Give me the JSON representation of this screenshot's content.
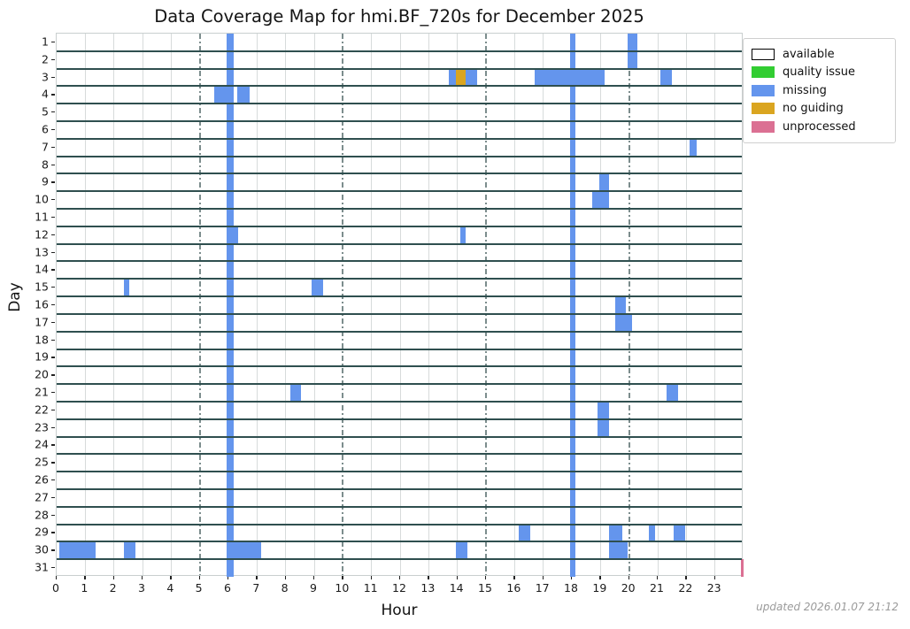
{
  "footer": {
    "updated": "updated 2026.01.07 21:12"
  },
  "legend": {
    "items": [
      {
        "label": "available",
        "color": "#ffffff",
        "border": "#000000"
      },
      {
        "label": "quality issue",
        "color": "#32cd32",
        "border": null
      },
      {
        "label": "missing",
        "color": "#6495ed",
        "border": null
      },
      {
        "label": "no guiding",
        "color": "#daa520",
        "border": null
      },
      {
        "label": "unprocessed",
        "color": "#db7093",
        "border": null
      }
    ]
  },
  "colors": {
    "available": "#ffffff",
    "quality_issue": "#32cd32",
    "missing": "#6495ed",
    "no_guiding": "#daa520",
    "unprocessed": "#db7093",
    "day_separator": "#2f4f4f",
    "grid_minor": "#d7dbdb",
    "grid_major": "#7c8d8d",
    "spine": "#c9cfcf",
    "tick": "#222222",
    "updated_text": "#9a9a9a"
  },
  "chart_data": {
    "type": "heatmap",
    "title": "Data Coverage Map for hmi.BF_720s for December 2025",
    "xlabel": "Hour",
    "ylabel": "Day",
    "x_range": [
      0,
      24
    ],
    "x_tick_labels": [
      "0",
      "1",
      "2",
      "3",
      "4",
      "5",
      "6",
      "7",
      "8",
      "9",
      "10",
      "11",
      "12",
      "13",
      "14",
      "15",
      "16",
      "17",
      "18",
      "19",
      "20",
      "21",
      "22",
      "23"
    ],
    "x_major_gridlines": [
      5,
      10,
      15,
      20
    ],
    "y_day_labels": [
      "1",
      "2",
      "3",
      "4",
      "5",
      "6",
      "7",
      "8",
      "9",
      "10",
      "11",
      "12",
      "13",
      "14",
      "15",
      "16",
      "17",
      "18",
      "19",
      "20",
      "21",
      "22",
      "23",
      "24",
      "25",
      "26",
      "27",
      "28",
      "29",
      "30",
      "31"
    ],
    "statuses": [
      "available",
      "quality issue",
      "missing",
      "no guiding",
      "unprocessed"
    ],
    "default_status": "available",
    "grid": true,
    "legend_position": "upper right outside",
    "full_column_marks": [
      {
        "start": 5.93,
        "end": 6.2,
        "status": "missing"
      },
      {
        "start": 17.93,
        "end": 18.13,
        "status": "missing"
      }
    ],
    "marks": [
      {
        "day": 1,
        "start": 19.95,
        "end": 20.3,
        "status": "missing"
      },
      {
        "day": 2,
        "start": 19.95,
        "end": 20.3,
        "status": "missing"
      },
      {
        "day": 3,
        "start": 13.7,
        "end": 13.95,
        "status": "missing"
      },
      {
        "day": 3,
        "start": 13.95,
        "end": 14.3,
        "status": "no guiding"
      },
      {
        "day": 3,
        "start": 14.3,
        "end": 14.7,
        "status": "missing"
      },
      {
        "day": 3,
        "start": 16.7,
        "end": 19.15,
        "status": "missing"
      },
      {
        "day": 3,
        "start": 21.1,
        "end": 21.5,
        "status": "missing"
      },
      {
        "day": 4,
        "start": 5.5,
        "end": 6.2,
        "status": "missing"
      },
      {
        "day": 4,
        "start": 6.3,
        "end": 6.75,
        "status": "missing"
      },
      {
        "day": 7,
        "start": 22.1,
        "end": 22.35,
        "status": "missing"
      },
      {
        "day": 9,
        "start": 18.95,
        "end": 19.3,
        "status": "missing"
      },
      {
        "day": 10,
        "start": 18.7,
        "end": 19.3,
        "status": "missing"
      },
      {
        "day": 12,
        "start": 5.95,
        "end": 6.35,
        "status": "missing"
      },
      {
        "day": 12,
        "start": 14.1,
        "end": 14.3,
        "status": "missing"
      },
      {
        "day": 15,
        "start": 2.35,
        "end": 2.55,
        "status": "missing"
      },
      {
        "day": 15,
        "start": 8.9,
        "end": 9.3,
        "status": "missing"
      },
      {
        "day": 16,
        "start": 19.5,
        "end": 19.9,
        "status": "missing"
      },
      {
        "day": 17,
        "start": 19.5,
        "end": 20.1,
        "status": "missing"
      },
      {
        "day": 21,
        "start": 8.15,
        "end": 8.55,
        "status": "missing"
      },
      {
        "day": 21,
        "start": 21.3,
        "end": 21.7,
        "status": "missing"
      },
      {
        "day": 22,
        "start": 18.9,
        "end": 19.3,
        "status": "missing"
      },
      {
        "day": 23,
        "start": 18.9,
        "end": 19.3,
        "status": "missing"
      },
      {
        "day": 29,
        "start": 16.15,
        "end": 16.55,
        "status": "missing"
      },
      {
        "day": 29,
        "start": 19.3,
        "end": 19.75,
        "status": "missing"
      },
      {
        "day": 29,
        "start": 20.7,
        "end": 20.9,
        "status": "missing"
      },
      {
        "day": 29,
        "start": 21.55,
        "end": 21.95,
        "status": "missing"
      },
      {
        "day": 30,
        "start": 0.1,
        "end": 1.35,
        "status": "missing"
      },
      {
        "day": 30,
        "start": 2.35,
        "end": 2.75,
        "status": "missing"
      },
      {
        "day": 30,
        "start": 6.0,
        "end": 7.15,
        "status": "missing"
      },
      {
        "day": 30,
        "start": 13.95,
        "end": 14.35,
        "status": "missing"
      },
      {
        "day": 30,
        "start": 19.3,
        "end": 19.95,
        "status": "missing"
      },
      {
        "day": 31,
        "start": 23.9,
        "end": 24.0,
        "status": "unprocessed"
      }
    ]
  }
}
